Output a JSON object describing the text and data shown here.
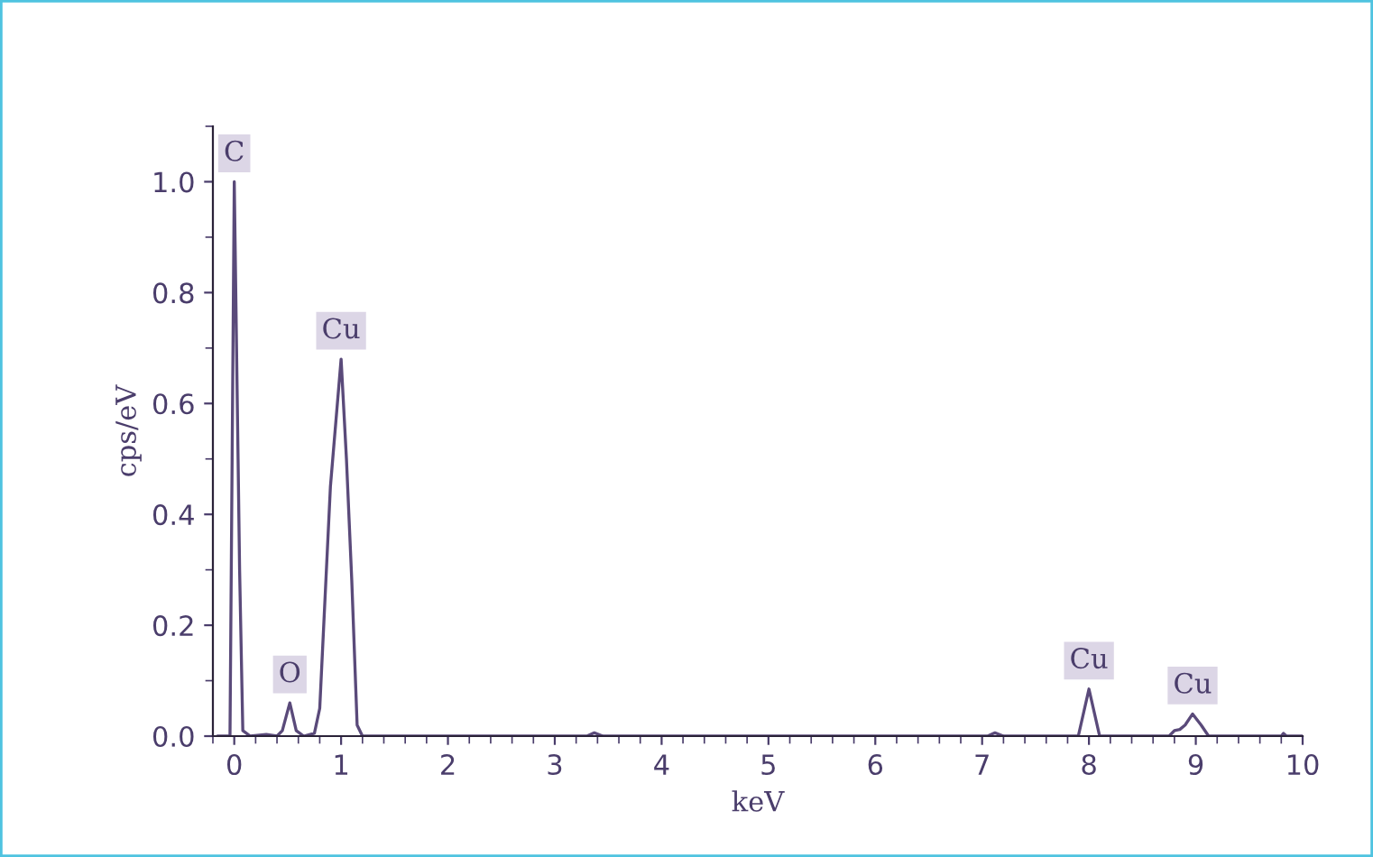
{
  "chart_data": {
    "type": "line",
    "xlabel": "keV",
    "ylabel": "cps/eV",
    "x": [
      -0.15,
      -0.1,
      -0.04,
      0.0,
      0.05,
      0.08,
      0.15,
      0.3,
      0.4,
      0.45,
      0.52,
      0.58,
      0.65,
      0.75,
      0.8,
      0.9,
      1.0,
      1.05,
      1.1,
      1.15,
      1.2,
      3.3,
      3.37,
      3.45,
      7.05,
      7.12,
      7.2,
      7.9,
      8.0,
      8.1,
      8.75,
      8.8,
      8.85,
      8.9,
      8.97,
      9.05,
      9.12,
      9.8,
      9.82,
      9.85,
      10.0
    ],
    "series": [
      {
        "color": "#5a4a7a",
        "values": [
          0,
          0,
          0,
          1.0,
          0.3,
          0.01,
          0,
          0.003,
          0,
          0.01,
          0.06,
          0.01,
          0,
          0.005,
          0.05,
          0.45,
          0.68,
          0.5,
          0.28,
          0.02,
          0,
          0,
          0.006,
          0,
          0,
          0.006,
          0,
          0,
          0.085,
          0,
          0,
          0.01,
          0.012,
          0.02,
          0.04,
          0.02,
          0,
          0,
          0.005,
          0,
          0
        ]
      }
    ],
    "xlim": [
      -0.2,
      10
    ],
    "xticks": [
      0,
      1,
      2,
      3,
      4,
      5,
      6,
      7,
      8,
      9,
      10
    ],
    "ylim": [
      0,
      1.1
    ],
    "yticks": [
      {
        "value": 0,
        "label": "0.0"
      },
      {
        "value": 0.2,
        "label": "0.2"
      },
      {
        "value": 0.4,
        "label": "0.4"
      },
      {
        "value": 0.6,
        "label": "0.6"
      },
      {
        "value": 0.8,
        "label": "0.8"
      },
      {
        "value": 1.0,
        "label": "1.0"
      }
    ],
    "grid": false,
    "legend": false,
    "marker": "none",
    "line_style": "solid",
    "annotations": [
      {
        "text": "C",
        "x": 0.0,
        "y": 1.0
      },
      {
        "text": "O",
        "x": 0.52,
        "y": 0.06
      },
      {
        "text": "Cu",
        "x": 1.0,
        "y": 0.68
      },
      {
        "text": "Cu",
        "x": 8.0,
        "y": 0.085
      },
      {
        "text": "Cu",
        "x": 8.97,
        "y": 0.04
      }
    ]
  }
}
